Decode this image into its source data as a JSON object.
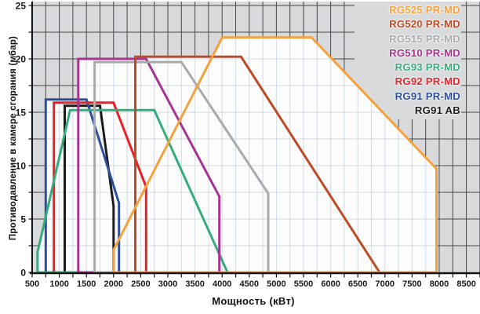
{
  "chart_data": {
    "type": "line",
    "title": "",
    "xlabel": "Мощность (кВт)",
    "ylabel": "Противодавление в камере сгорания (мбар)",
    "x_range": [
      500,
      8750
    ],
    "y_range": [
      0,
      25.4
    ],
    "x_ticks": [
      500,
      1000,
      1500,
      2000,
      2500,
      3000,
      3500,
      4000,
      4500,
      5000,
      5500,
      6000,
      6500,
      7000,
      7500,
      8000,
      8500
    ],
    "y_ticks": [
      0,
      5,
      10,
      15,
      20,
      25
    ],
    "x_minor_step": 250,
    "y_minor_step": 2.5,
    "grid": true,
    "legend_position": "top-right",
    "series": [
      {
        "name": "RG525 PR-MD",
        "color": "#F5A23C",
        "points": [
          [
            2000,
            0
          ],
          [
            2000,
            2.1
          ],
          [
            4000,
            22
          ],
          [
            5650,
            22
          ],
          [
            7950,
            9.7
          ],
          [
            7950,
            0
          ]
        ]
      },
      {
        "name": "RG520 PR-MD",
        "color": "#BE4A26",
        "points": [
          [
            2400,
            0
          ],
          [
            2400,
            20.2
          ],
          [
            4350,
            20.2
          ],
          [
            6900,
            0
          ]
        ]
      },
      {
        "name": "RG515 PR-MD",
        "color": "#A8AAAC",
        "points": [
          [
            1650,
            0
          ],
          [
            1650,
            19.7
          ],
          [
            3250,
            19.7
          ],
          [
            4850,
            7.4
          ],
          [
            4850,
            0
          ]
        ]
      },
      {
        "name": "RG510 PR-MD",
        "color": "#A93391",
        "points": [
          [
            1350,
            0
          ],
          [
            1350,
            20.0
          ],
          [
            2600,
            20.0
          ],
          [
            3950,
            7.1
          ],
          [
            3950,
            0
          ]
        ]
      },
      {
        "name": "RG93 PR-MD",
        "color": "#34AD7C",
        "points": [
          [
            600,
            0
          ],
          [
            600,
            1.9
          ],
          [
            1200,
            15.2
          ],
          [
            2750,
            15.2
          ],
          [
            4100,
            0
          ]
        ]
      },
      {
        "name": "RG92 PR-MD",
        "color": "#E6212A",
        "points": [
          [
            900,
            0
          ],
          [
            900,
            15.9
          ],
          [
            2000,
            15.9
          ],
          [
            2600,
            8.0
          ],
          [
            2600,
            0
          ]
        ]
      },
      {
        "name": "RG91 PR-MD",
        "color": "#2C4E9D",
        "points": [
          [
            750,
            0
          ],
          [
            750,
            16.2
          ],
          [
            1500,
            16.2
          ],
          [
            2100,
            6.5
          ],
          [
            2100,
            0
          ]
        ]
      },
      {
        "name": "RG91 AB",
        "color": "#1B1B1B",
        "points": [
          [
            1100,
            0
          ],
          [
            1100,
            15.6
          ],
          [
            1750,
            15.6
          ],
          [
            2000,
            6.2
          ],
          [
            2000,
            0
          ]
        ]
      }
    ]
  },
  "style": {
    "plot_bg": "#d9dadc",
    "grid_dark": "#47474a",
    "envelope_fill": "#fcfcfd",
    "grid_light": "#d3dae2",
    "axis_color": "#111111",
    "tick_label_color": "#1a1a1a",
    "page_bg": "#ffffff"
  }
}
